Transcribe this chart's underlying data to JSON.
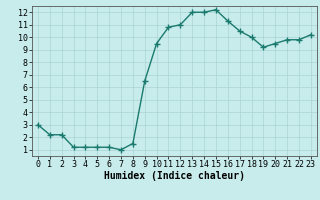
{
  "x": [
    0,
    1,
    2,
    3,
    4,
    5,
    6,
    7,
    8,
    9,
    10,
    11,
    12,
    13,
    14,
    15,
    16,
    17,
    18,
    19,
    20,
    21,
    22,
    23
  ],
  "y": [
    3.0,
    2.2,
    2.2,
    1.2,
    1.2,
    1.2,
    1.2,
    1.0,
    1.5,
    6.5,
    9.5,
    10.8,
    11.0,
    12.0,
    12.0,
    12.2,
    11.3,
    10.5,
    10.0,
    9.2,
    9.5,
    9.8,
    9.8,
    10.2
  ],
  "line_color": "#1a7a6e",
  "marker": "+",
  "marker_size": 4,
  "bg_color": "#c8ecec",
  "grid_color": "#aad4d4",
  "xlabel": "Humidex (Indice chaleur)",
  "xlabel_fontsize": 7,
  "xlim": [
    -0.5,
    23.5
  ],
  "ylim": [
    0.5,
    12.5
  ],
  "yticks": [
    1,
    2,
    3,
    4,
    5,
    6,
    7,
    8,
    9,
    10,
    11,
    12
  ],
  "xticks": [
    0,
    1,
    2,
    3,
    4,
    5,
    6,
    7,
    8,
    9,
    10,
    11,
    12,
    13,
    14,
    15,
    16,
    17,
    18,
    19,
    20,
    21,
    22,
    23
  ],
  "tick_fontsize": 6,
  "line_width": 1.0
}
